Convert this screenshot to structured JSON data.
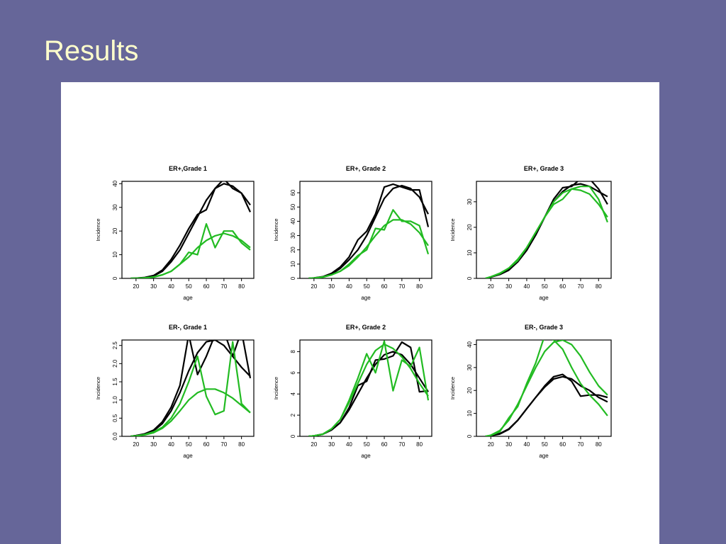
{
  "slide": {
    "title": "Results"
  },
  "colors": {
    "background": "#666699",
    "title": "#ffffcc",
    "panel": "#ffffff",
    "observed": "#000000",
    "predicted": "#22bb22"
  },
  "chart_data": [
    {
      "type": "line",
      "title": "ER+,Grade 1",
      "xlabel": "age",
      "ylabel": "Incidence",
      "xlim": [
        12,
        87
      ],
      "ylim": [
        0,
        41
      ],
      "xticks": [
        20,
        30,
        40,
        50,
        60,
        70,
        80
      ],
      "yticks": [
        0,
        10,
        20,
        30,
        40
      ],
      "series": [
        {
          "color": "#000000",
          "x": [
            17,
            20,
            25,
            30,
            35,
            40,
            45,
            50,
            55,
            60,
            65,
            70,
            75,
            80,
            85
          ],
          "y": [
            0,
            0.1,
            0.3,
            1,
            3,
            7,
            12,
            19,
            26,
            33,
            38,
            40,
            39,
            36,
            31
          ]
        },
        {
          "color": "#000000",
          "x": [
            17,
            20,
            25,
            30,
            35,
            40,
            45,
            50,
            55,
            60,
            65,
            70,
            75,
            80,
            85
          ],
          "y": [
            0,
            0.1,
            0.4,
            1.2,
            3.5,
            8,
            14,
            21,
            27,
            29,
            38,
            42,
            38,
            36,
            28
          ]
        },
        {
          "color": "#22bb22",
          "x": [
            17,
            20,
            25,
            30,
            35,
            40,
            45,
            50,
            55,
            60,
            65,
            70,
            75,
            80,
            85
          ],
          "y": [
            0,
            0,
            0.2,
            0.5,
            1.5,
            3,
            6,
            9,
            13,
            16,
            18,
            19,
            18,
            16,
            13
          ]
        },
        {
          "color": "#22bb22",
          "x": [
            17,
            20,
            25,
            30,
            35,
            40,
            45,
            50,
            55,
            60,
            65,
            70,
            75,
            80,
            85
          ],
          "y": [
            0,
            0,
            0.2,
            0.6,
            1.5,
            3,
            6,
            11,
            10,
            23,
            13,
            20,
            20,
            15,
            12
          ]
        }
      ]
    },
    {
      "type": "line",
      "title": "ER+, Grade 2",
      "xlabel": "age",
      "ylabel": "Incidence",
      "xlim": [
        12,
        87
      ],
      "ylim": [
        0,
        68
      ],
      "xticks": [
        20,
        30,
        40,
        50,
        60,
        70,
        80
      ],
      "yticks": [
        0,
        10,
        20,
        30,
        40,
        50,
        60
      ],
      "series": [
        {
          "color": "#000000",
          "x": [
            17,
            20,
            25,
            30,
            35,
            40,
            45,
            50,
            55,
            60,
            65,
            70,
            75,
            80,
            85
          ],
          "y": [
            0,
            0.2,
            1,
            3,
            7,
            13,
            20,
            30,
            43,
            56,
            63,
            65,
            63,
            57,
            45
          ]
        },
        {
          "color": "#000000",
          "x": [
            17,
            20,
            25,
            30,
            35,
            40,
            45,
            50,
            55,
            60,
            65,
            70,
            75,
            80,
            85
          ],
          "y": [
            0,
            0.3,
            1.2,
            3.5,
            8,
            15,
            27,
            33,
            45,
            64,
            66,
            64,
            62,
            62,
            36
          ]
        },
        {
          "color": "#22bb22",
          "x": [
            17,
            20,
            25,
            30,
            35,
            40,
            45,
            50,
            55,
            60,
            65,
            70,
            75,
            80,
            85
          ],
          "y": [
            0,
            0.2,
            0.8,
            2.5,
            5,
            9,
            15,
            22,
            30,
            37,
            41,
            41,
            38,
            32,
            23
          ]
        },
        {
          "color": "#22bb22",
          "x": [
            17,
            20,
            25,
            30,
            35,
            40,
            45,
            50,
            55,
            60,
            65,
            70,
            75,
            80,
            85
          ],
          "y": [
            0,
            0.2,
            1,
            2.5,
            5,
            10,
            16,
            20,
            35,
            34,
            48,
            40,
            40,
            37,
            17
          ]
        }
      ]
    },
    {
      "type": "line",
      "title": "ER+, Grade 3",
      "xlabel": "age",
      "ylabel": "Incidence",
      "xlim": [
        12,
        87
      ],
      "ylim": [
        0,
        38
      ],
      "xticks": [
        20,
        30,
        40,
        50,
        60,
        70,
        80
      ],
      "yticks": [
        0,
        10,
        20,
        30
      ],
      "series": [
        {
          "color": "#000000",
          "x": [
            17,
            20,
            25,
            30,
            35,
            40,
            45,
            50,
            55,
            60,
            65,
            70,
            75,
            80,
            85
          ],
          "y": [
            0,
            0.5,
            1.5,
            3.2,
            6.5,
            11,
            17,
            24,
            30,
            34,
            36.5,
            37,
            36,
            34,
            32
          ]
        },
        {
          "color": "#000000",
          "x": [
            17,
            20,
            25,
            30,
            35,
            40,
            45,
            50,
            55,
            60,
            65,
            70,
            75,
            80,
            85
          ],
          "y": [
            0,
            0.5,
            1.8,
            3.5,
            6.5,
            11,
            17,
            24,
            31,
            35.5,
            36,
            39,
            39,
            35,
            29
          ]
        },
        {
          "color": "#22bb22",
          "x": [
            17,
            20,
            25,
            30,
            35,
            40,
            45,
            50,
            55,
            60,
            65,
            70,
            75,
            80,
            85
          ],
          "y": [
            0,
            0.6,
            2,
            4,
            7,
            12,
            18,
            24,
            30,
            33.5,
            35,
            34.5,
            33,
            29,
            24
          ]
        },
        {
          "color": "#22bb22",
          "x": [
            17,
            20,
            25,
            30,
            35,
            40,
            45,
            50,
            55,
            60,
            65,
            70,
            75,
            80,
            85
          ],
          "y": [
            0,
            0.6,
            1.8,
            4,
            7.5,
            12,
            18,
            24,
            29,
            31,
            35,
            36,
            36,
            31,
            22
          ]
        }
      ]
    },
    {
      "type": "line",
      "title": "ER-, Grade 1",
      "xlabel": "age",
      "ylabel": "Incidence",
      "xlim": [
        12,
        87
      ],
      "ylim": [
        0,
        2.65
      ],
      "xticks": [
        20,
        30,
        40,
        50,
        60,
        70,
        80
      ],
      "yticks": [
        0.0,
        0.5,
        1.0,
        1.5,
        2.0,
        2.5
      ],
      "series": [
        {
          "color": "#000000",
          "x": [
            17,
            20,
            25,
            30,
            35,
            40,
            45,
            50,
            55,
            60,
            65,
            70,
            75,
            80,
            85
          ],
          "y": [
            0,
            0.02,
            0.06,
            0.15,
            0.35,
            0.7,
            1.2,
            1.8,
            2.3,
            2.6,
            2.65,
            2.5,
            2.2,
            1.9,
            1.65
          ]
        },
        {
          "color": "#000000",
          "x": [
            17,
            20,
            25,
            30,
            35,
            40,
            45,
            50,
            55,
            60,
            65,
            70,
            75,
            80,
            85
          ],
          "y": [
            0,
            0.02,
            0.07,
            0.17,
            0.4,
            0.8,
            1.4,
            2.8,
            1.7,
            2.2,
            2.8,
            2.9,
            2.2,
            2.9,
            1.6
          ]
        },
        {
          "color": "#22bb22",
          "x": [
            17,
            20,
            25,
            30,
            35,
            40,
            45,
            50,
            55,
            60,
            65,
            70,
            75,
            80,
            85
          ],
          "y": [
            0,
            0.01,
            0.04,
            0.1,
            0.22,
            0.42,
            0.7,
            1.0,
            1.2,
            1.3,
            1.3,
            1.2,
            1.05,
            0.85,
            0.65
          ]
        },
        {
          "color": "#22bb22",
          "x": [
            17,
            20,
            25,
            30,
            35,
            40,
            45,
            50,
            55,
            60,
            65,
            70,
            75,
            80,
            85
          ],
          "y": [
            0,
            0.01,
            0.05,
            0.12,
            0.25,
            0.5,
            0.9,
            1.5,
            2.2,
            1.1,
            0.6,
            0.7,
            2.6,
            0.9,
            0.65
          ]
        }
      ]
    },
    {
      "type": "line",
      "title": "ER+, Grade 2",
      "xlabel": "age",
      "ylabel": "Incidence",
      "xlim": [
        12,
        87
      ],
      "ylim": [
        0,
        9.1
      ],
      "xticks": [
        20,
        30,
        40,
        50,
        60,
        70,
        80
      ],
      "yticks": [
        0,
        2,
        4,
        6,
        8
      ],
      "series": [
        {
          "color": "#000000",
          "x": [
            17,
            20,
            25,
            30,
            35,
            40,
            45,
            50,
            55,
            60,
            65,
            70,
            75,
            80,
            85
          ],
          "y": [
            0,
            0.05,
            0.2,
            0.6,
            1.3,
            2.5,
            4,
            5.5,
            6.8,
            7.7,
            8.0,
            7.7,
            6.8,
            5.5,
            4.2
          ]
        },
        {
          "color": "#000000",
          "x": [
            17,
            20,
            25,
            30,
            35,
            40,
            45,
            50,
            55,
            60,
            65,
            70,
            75,
            80,
            85
          ],
          "y": [
            0,
            0.05,
            0.2,
            0.6,
            1.3,
            2.7,
            4.8,
            5.2,
            7.2,
            7.3,
            7.6,
            8.9,
            8.4,
            4.2,
            4.3
          ]
        },
        {
          "color": "#22bb22",
          "x": [
            17,
            20,
            25,
            30,
            35,
            40,
            45,
            50,
            55,
            60,
            65,
            70,
            75,
            80,
            85
          ],
          "y": [
            0,
            0.05,
            0.2,
            0.7,
            1.6,
            3.2,
            5,
            6.8,
            8.1,
            8.7,
            8.3,
            7.5,
            6.4,
            5.0,
            3.8
          ]
        },
        {
          "color": "#22bb22",
          "x": [
            17,
            20,
            25,
            30,
            35,
            40,
            45,
            50,
            55,
            60,
            65,
            70,
            75,
            80,
            85
          ],
          "y": [
            0,
            0.05,
            0.2,
            0.7,
            1.6,
            3.4,
            5.5,
            7.8,
            6.0,
            9.0,
            4.3,
            7.2,
            6.6,
            8.4,
            3.4
          ]
        }
      ]
    },
    {
      "type": "line",
      "title": "ER-, Grade 3",
      "xlabel": "age",
      "ylabel": "Incidence",
      "xlim": [
        12,
        87
      ],
      "ylim": [
        0,
        42
      ],
      "xticks": [
        20,
        30,
        40,
        50,
        60,
        70,
        80
      ],
      "yticks": [
        0,
        10,
        20,
        30,
        40
      ],
      "series": [
        {
          "color": "#000000",
          "x": [
            17,
            20,
            25,
            30,
            35,
            40,
            45,
            50,
            55,
            60,
            65,
            70,
            75,
            80,
            85
          ],
          "y": [
            0,
            0.3,
            1,
            3,
            7,
            12,
            17,
            21.5,
            25,
            26,
            25,
            22,
            20,
            17,
            15
          ]
        },
        {
          "color": "#000000",
          "x": [
            17,
            20,
            25,
            30,
            35,
            40,
            45,
            50,
            55,
            60,
            65,
            70,
            75,
            80,
            85
          ],
          "y": [
            0,
            0.3,
            1.2,
            3.2,
            7,
            12,
            17,
            22,
            26,
            27,
            24,
            17.5,
            18,
            18,
            17
          ]
        },
        {
          "color": "#22bb22",
          "x": [
            17,
            20,
            25,
            30,
            35,
            40,
            45,
            50,
            55,
            60,
            65,
            70,
            75,
            80,
            85
          ],
          "y": [
            0,
            0.5,
            2.5,
            7,
            14,
            22,
            30,
            37,
            41,
            42,
            40,
            35,
            28,
            22,
            18
          ]
        },
        {
          "color": "#22bb22",
          "x": [
            17,
            20,
            25,
            30,
            35,
            40,
            45,
            50,
            55,
            60,
            65,
            70,
            75,
            80,
            85
          ],
          "y": [
            0,
            0.4,
            2,
            8,
            13,
            23,
            32,
            44,
            42,
            38,
            30,
            23,
            18,
            14,
            9
          ]
        }
      ]
    }
  ]
}
